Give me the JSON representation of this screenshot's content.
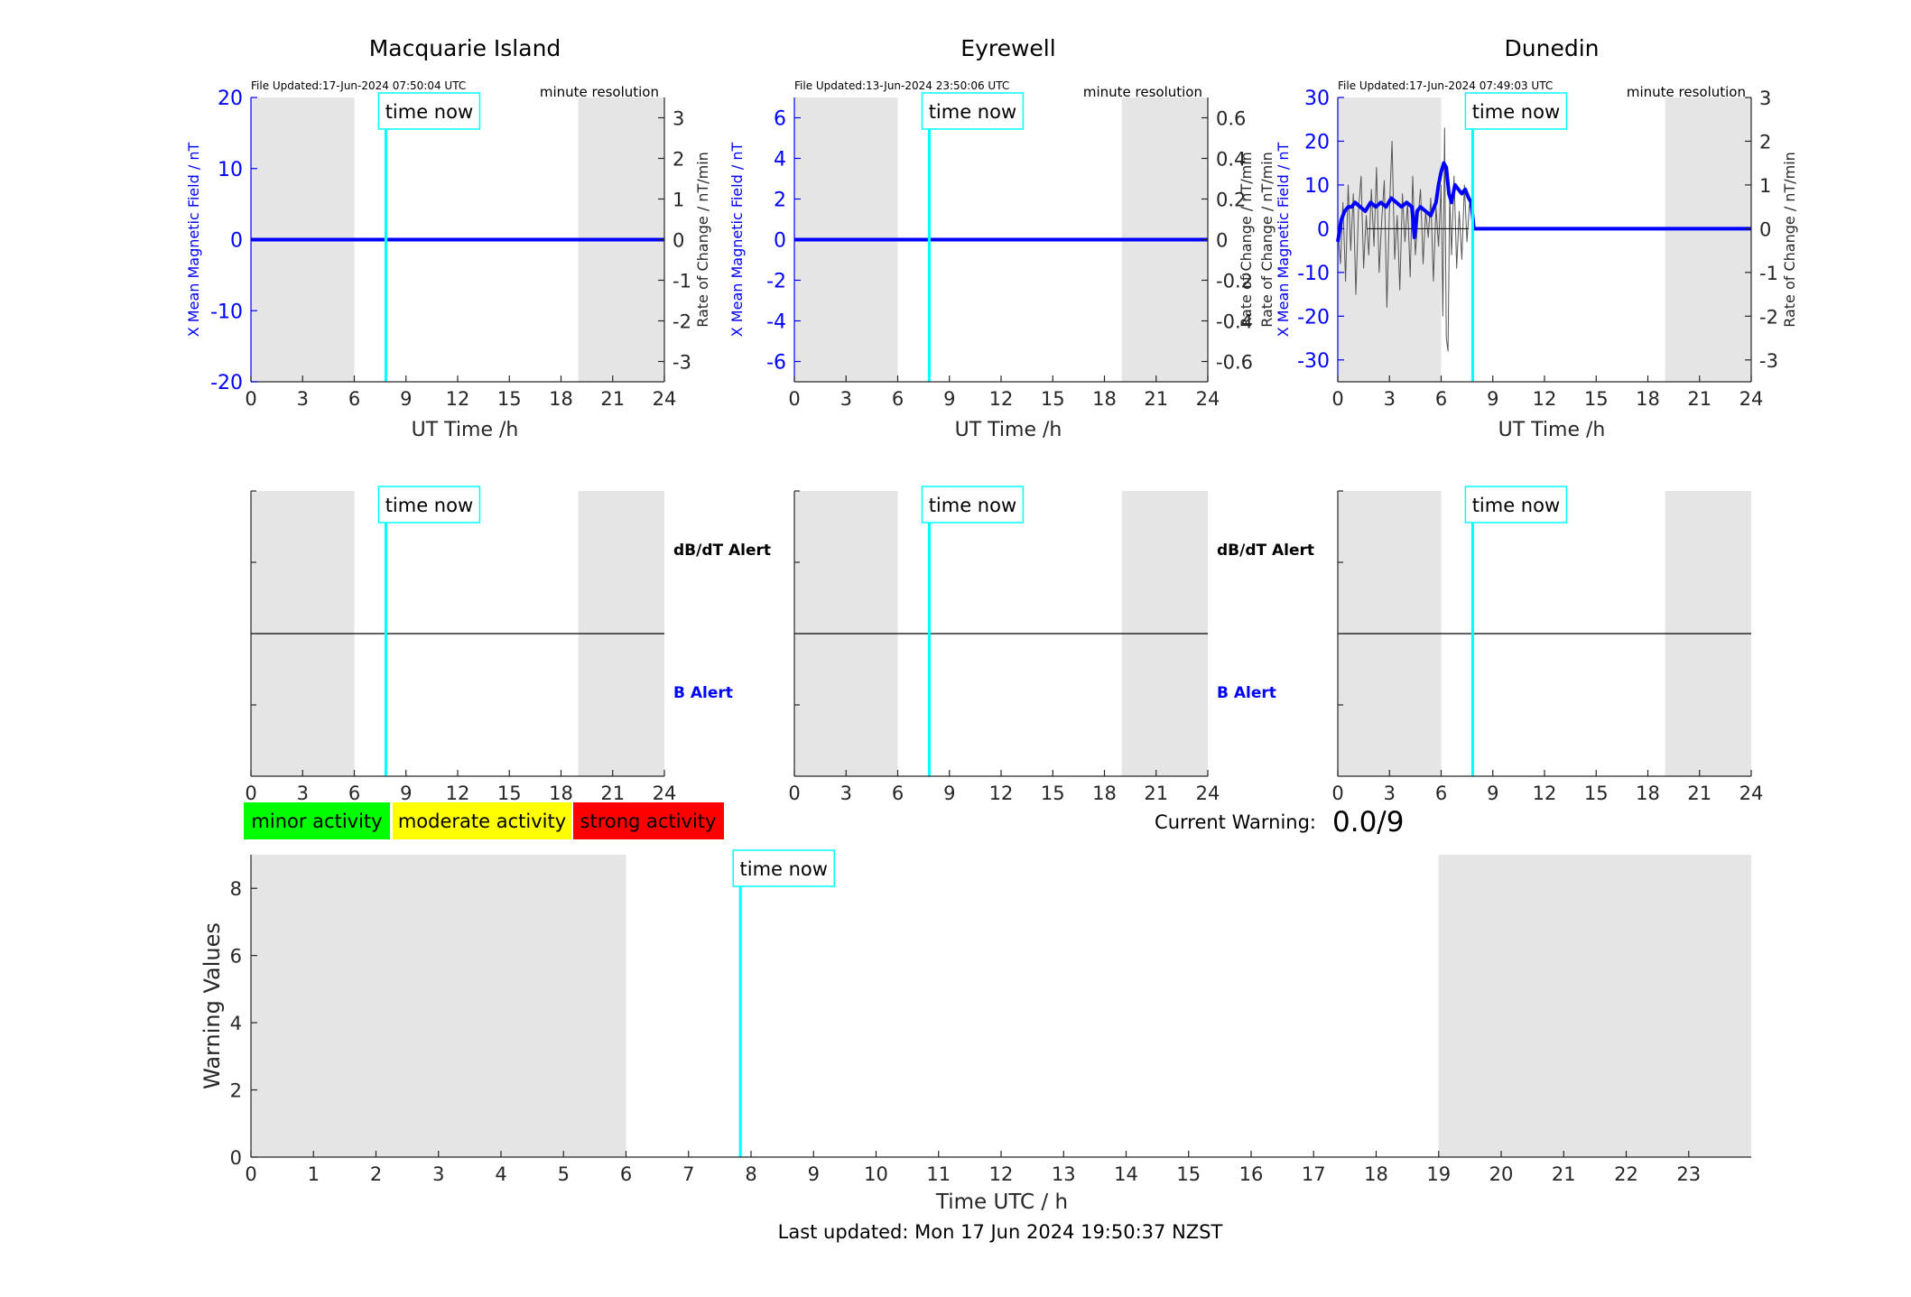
{
  "chart_data": [
    {
      "type": "line",
      "station": "Macquarie Island",
      "file_updated": "File Updated:17-Jun-2024 07:50:04 UTC",
      "resolution": "minute resolution",
      "marker_label": "time now",
      "time_now": 7.83,
      "xlabel": "UT Time /h",
      "ylabel_left": "X Mean Magnetic Field / nT",
      "ylabel_right": "Rate of Change / nT/min",
      "xlim": [
        0,
        24
      ],
      "xticks": [
        0,
        3,
        6,
        9,
        12,
        15,
        18,
        21,
        24
      ],
      "ylim_left": [
        -20,
        20
      ],
      "yticks_left": [
        -20,
        -10,
        0,
        10,
        20
      ],
      "ylim_right": [
        -3.5,
        3.5
      ],
      "yticks_right": [
        -3,
        -2,
        -1,
        0,
        1,
        2,
        3
      ],
      "shaded_hours": [
        [
          0,
          6
        ],
        [
          19,
          24
        ]
      ],
      "series": [
        {
          "color": "#0000ff",
          "x": [
            0,
            24
          ],
          "y": [
            0,
            0
          ]
        }
      ]
    },
    {
      "type": "line",
      "station": "Eyrewell",
      "file_updated": "File Updated:13-Jun-2024 23:50:06 UTC",
      "resolution": "minute resolution",
      "marker_label": "time now",
      "time_now": 7.83,
      "xlabel": "UT Time /h",
      "ylabel_left": "X Mean Magnetic Field / nT",
      "ylabel_right": "Rate of Change / nT/min",
      "xlim": [
        0,
        24
      ],
      "xticks": [
        0,
        3,
        6,
        9,
        12,
        15,
        18,
        21,
        24
      ],
      "ylim_left": [
        -7,
        7
      ],
      "yticks_left": [
        -6,
        -4,
        -2,
        0,
        2,
        4,
        6
      ],
      "ylim_right": [
        -0.7,
        0.7
      ],
      "yticks_right": [
        -0.6,
        -0.4,
        -0.2,
        0,
        0.2,
        0.4,
        0.6
      ],
      "shaded_hours": [
        [
          0,
          6
        ],
        [
          19,
          24
        ]
      ],
      "series": [
        {
          "color": "#0000ff",
          "x": [
            0,
            24
          ],
          "y": [
            0,
            0
          ]
        }
      ]
    },
    {
      "type": "line",
      "station": "Dunedin",
      "file_updated": "File Updated:17-Jun-2024 07:49:03 UTC",
      "resolution": "minute resolution",
      "marker_label": "time now",
      "time_now": 7.83,
      "xlabel": "UT Time /h",
      "ylabel_left_1": "Rate of Change / nT/min",
      "ylabel_left_2": "X Mean Magnetic Field / nT",
      "ylabel_right": "Rate of Change / nT/min",
      "xlim": [
        0,
        24
      ],
      "xticks": [
        0,
        3,
        6,
        9,
        12,
        15,
        18,
        21,
        24
      ],
      "ylim_left": [
        -35,
        30
      ],
      "yticks_left": [
        -30,
        -20,
        -10,
        0,
        10,
        20,
        30
      ],
      "ylim_right": [
        -3.5,
        3
      ],
      "yticks_right": [
        -3,
        -2,
        -1,
        0,
        1,
        2,
        3
      ],
      "shaded_hours": [
        [
          0,
          6
        ],
        [
          19,
          24
        ]
      ],
      "series": [
        {
          "color": "#0000ff",
          "x": [
            0,
            0.2,
            0.4,
            0.6,
            0.8,
            1.0,
            1.3,
            1.6,
            1.9,
            2.2,
            2.5,
            2.8,
            3.1,
            3.4,
            3.7,
            4.0,
            4.3,
            4.45,
            4.6,
            4.8,
            5.1,
            5.4,
            5.7,
            5.85,
            6.0,
            6.15,
            6.3,
            6.45,
            6.6,
            6.8,
            7.0,
            7.2,
            7.4,
            7.6,
            7.75,
            7.9,
            24
          ],
          "y": [
            -3,
            2,
            4,
            5,
            5,
            6,
            5,
            4,
            6,
            5,
            6,
            5,
            7,
            6,
            5,
            6,
            5,
            -2,
            4,
            5,
            4,
            3,
            6,
            10,
            13,
            15,
            14,
            8,
            6,
            10,
            9,
            8,
            9,
            7,
            6,
            0,
            0
          ]
        },
        {
          "color": "#555555",
          "x": [
            0,
            0.15,
            0.3,
            0.45,
            0.6,
            0.75,
            0.9,
            1.05,
            1.2,
            1.35,
            1.5,
            1.65,
            1.8,
            1.95,
            2.1,
            2.25,
            2.4,
            2.55,
            2.7,
            2.85,
            3.0,
            3.15,
            3.3,
            3.45,
            3.6,
            3.75,
            3.9,
            4.05,
            4.2,
            4.35,
            4.5,
            4.65,
            4.8,
            4.95,
            5.1,
            5.25,
            5.4,
            5.55,
            5.7,
            5.85,
            6.0,
            6.1,
            6.2,
            6.3,
            6.4,
            6.5,
            6.6,
            6.75,
            6.9,
            7.05,
            7.2,
            7.35,
            7.5,
            7.65,
            7.8
          ],
          "y": [
            0,
            -8,
            6,
            -12,
            10,
            -5,
            8,
            -15,
            4,
            12,
            -9,
            3,
            -6,
            9,
            -4,
            14,
            -10,
            2,
            11,
            -18,
            5,
            20,
            -7,
            3,
            -14,
            8,
            -3,
            6,
            -11,
            12,
            -6,
            2,
            9,
            -8,
            4,
            -2,
            7,
            -12,
            5,
            -4,
            10,
            -20,
            23,
            -25,
            -28,
            8,
            -6,
            12,
            -9,
            4,
            -7,
            10,
            -3,
            6,
            2
          ]
        },
        {
          "color": "#000000",
          "x": [
            1.7,
            7.6
          ],
          "y": [
            0,
            0
          ]
        }
      ]
    },
    {
      "type": "line",
      "panel": "alert",
      "label_top": "dB/dT Alert",
      "label_bottom": "B Alert",
      "marker_label": "time now",
      "time_now": 7.83,
      "xlim": [
        0,
        24
      ],
      "xticks": [
        0,
        3,
        6,
        9,
        12,
        15,
        18,
        21,
        24
      ],
      "shaded_hours": [
        [
          0,
          6
        ],
        [
          19,
          24
        ]
      ]
    },
    {
      "type": "line",
      "panel": "alert",
      "label_top": "dB/dT Alert",
      "label_bottom": "B Alert",
      "marker_label": "time now",
      "time_now": 7.83,
      "xlim": [
        0,
        24
      ],
      "xticks": [
        0,
        3,
        6,
        9,
        12,
        15,
        18,
        21,
        24
      ],
      "shaded_hours": [
        [
          0,
          6
        ],
        [
          19,
          24
        ]
      ]
    },
    {
      "type": "line",
      "panel": "alert",
      "marker_label": "time now",
      "time_now": 7.83,
      "xlim": [
        0,
        24
      ],
      "xticks": [
        0,
        3,
        6,
        9,
        12,
        15,
        18,
        21,
        24
      ],
      "shaded_hours": [
        [
          0,
          6
        ],
        [
          19,
          24
        ]
      ]
    },
    {
      "type": "bar",
      "panel": "warning",
      "marker_label": "time now",
      "time_now": 7.83,
      "xlabel": "Time UTC / h",
      "ylabel": "Warning Values",
      "xlim": [
        0,
        24
      ],
      "xticks": [
        0,
        1,
        2,
        3,
        4,
        5,
        6,
        7,
        8,
        9,
        10,
        11,
        12,
        13,
        14,
        15,
        16,
        17,
        18,
        19,
        20,
        21,
        22,
        23
      ],
      "ylim": [
        0,
        9
      ],
      "yticks": [
        0,
        2,
        4,
        6,
        8
      ],
      "shaded_hours": [
        [
          0,
          6
        ],
        [
          19,
          24
        ]
      ],
      "values": []
    }
  ],
  "legend": [
    {
      "label": "minor activity",
      "color": "#00ff00"
    },
    {
      "label": "moderate activity",
      "color": "#ffff00"
    },
    {
      "label": "strong activity",
      "color": "#ff0000"
    }
  ],
  "current_warning": {
    "label": "Current Warning:",
    "value": "0.0/9"
  },
  "footer": "Last updated: Mon 17 Jun 2024 19:50:37 NZST",
  "colors": {
    "shade": "#e5e5e5",
    "time_now": "#00ffff",
    "field": "#0000ff",
    "rate": "#555555"
  }
}
